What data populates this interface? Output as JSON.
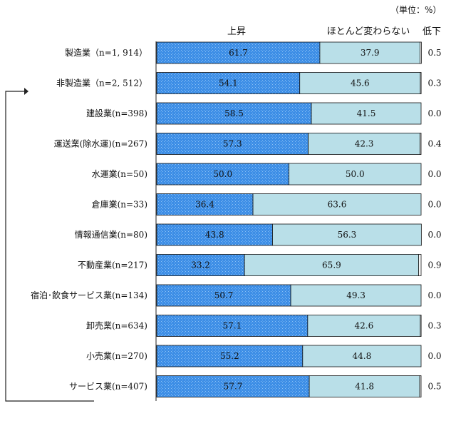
{
  "chart_data": {
    "type": "bar",
    "stacked": true,
    "orientation": "horizontal",
    "unit_label": "（単位：%）",
    "categories": [
      "製造業（n=1, 914）",
      "非製造業（n=2, 512）",
      "建設業(n=398)",
      "運送業(除水運)(n=267)",
      "水運業(n=50)",
      "倉庫業(n=33)",
      "情報通信業(n=80)",
      "不動産業(n=217)",
      "宿泊･飲食サービス業(n=134)",
      "卸売業(n=634)",
      "小売業(n=270)",
      "サービス業(n=407)"
    ],
    "series": [
      {
        "name": "上昇",
        "color": "#3d8ee6",
        "values": [
          61.7,
          54.1,
          58.5,
          57.3,
          50.0,
          36.4,
          43.8,
          33.2,
          50.7,
          57.1,
          55.2,
          57.7
        ]
      },
      {
        "name": "ほとんど変わらない",
        "color": "#b9dfe8",
        "values": [
          37.9,
          45.6,
          41.5,
          42.3,
          50.0,
          63.6,
          56.3,
          65.9,
          49.3,
          42.6,
          44.8,
          41.8
        ]
      },
      {
        "name": "低下",
        "color": "#ffffff",
        "values": [
          0.5,
          0.3,
          0.0,
          0.4,
          0.0,
          0.0,
          0.0,
          0.9,
          0.0,
          0.3,
          0.0,
          0.5
        ]
      }
    ],
    "xlim": [
      0,
      100
    ],
    "legend": "top"
  }
}
